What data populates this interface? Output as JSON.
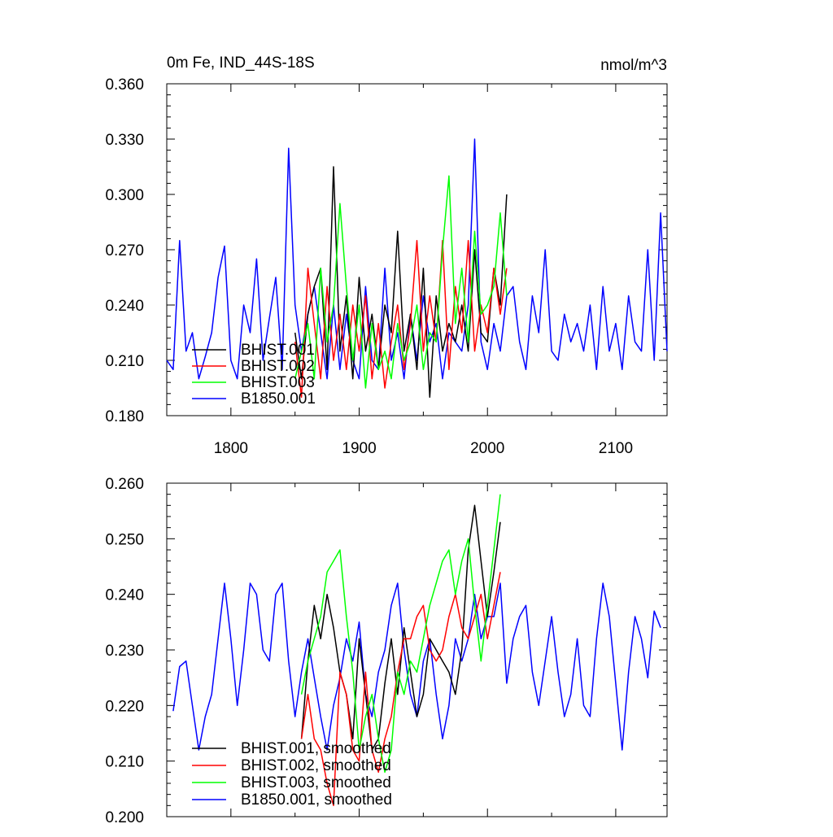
{
  "chart_data": [
    {
      "type": "line",
      "title": "0m Fe, IND_44S-18S",
      "units": "nmol/m^3",
      "xlim": [
        1750,
        2140
      ],
      "ylim": [
        0.18,
        0.36
      ],
      "xticks": [
        1800,
        1900,
        2000,
        2100
      ],
      "xtick_labels": [
        "1800",
        "1900",
        "2000",
        "2100"
      ],
      "yticks": [
        0.18,
        0.21,
        0.24,
        0.27,
        0.3,
        0.33,
        0.36
      ],
      "ytick_labels": [
        "0.180",
        "0.210",
        "0.240",
        "0.270",
        "0.300",
        "0.330",
        "0.360"
      ],
      "legend_position": "bottom-left",
      "grid": false,
      "series": [
        {
          "name": "B1850.001",
          "color": "#0000ff",
          "x": [
            1750,
            1755,
            1760,
            1765,
            1770,
            1775,
            1780,
            1785,
            1790,
            1795,
            1800,
            1805,
            1810,
            1815,
            1820,
            1825,
            1830,
            1835,
            1840,
            1845,
            1850,
            1855,
            1860,
            1865,
            1870,
            1875,
            1880,
            1885,
            1890,
            1895,
            1900,
            1905,
            1910,
            1915,
            1920,
            1925,
            1930,
            1935,
            1940,
            1945,
            1950,
            1955,
            1960,
            1965,
            1970,
            1975,
            1980,
            1985,
            1990,
            1995,
            2000,
            2005,
            2010,
            2015,
            2020,
            2025,
            2030,
            2035,
            2040,
            2045,
            2050,
            2055,
            2060,
            2065,
            2070,
            2075,
            2080,
            2085,
            2090,
            2095,
            2100,
            2105,
            2110,
            2115,
            2120,
            2125,
            2130,
            2135,
            2140
          ],
          "y": [
            0.21,
            0.205,
            0.275,
            0.215,
            0.225,
            0.2,
            0.212,
            0.225,
            0.255,
            0.272,
            0.21,
            0.2,
            0.24,
            0.225,
            0.265,
            0.21,
            0.233,
            0.255,
            0.205,
            0.325,
            0.24,
            0.215,
            0.235,
            0.25,
            0.225,
            0.2,
            0.24,
            0.205,
            0.235,
            0.21,
            0.2,
            0.25,
            0.21,
            0.205,
            0.26,
            0.21,
            0.225,
            0.2,
            0.235,
            0.21,
            0.245,
            0.22,
            0.23,
            0.2,
            0.225,
            0.22,
            0.215,
            0.24,
            0.33,
            0.22,
            0.205,
            0.23,
            0.215,
            0.245,
            0.25,
            0.22,
            0.205,
            0.245,
            0.225,
            0.27,
            0.215,
            0.21,
            0.235,
            0.22,
            0.23,
            0.215,
            0.24,
            0.205,
            0.25,
            0.215,
            0.23,
            0.205,
            0.245,
            0.22,
            0.215,
            0.27,
            0.21,
            0.29,
            0.215
          ]
        },
        {
          "name": "BHIST.001",
          "color": "#000000",
          "x": [
            1850,
            1855,
            1860,
            1865,
            1870,
            1875,
            1880,
            1885,
            1890,
            1895,
            1900,
            1905,
            1910,
            1915,
            1920,
            1925,
            1930,
            1935,
            1940,
            1945,
            1950,
            1955,
            1960,
            1965,
            1970,
            1975,
            1980,
            1985,
            1990,
            1995,
            2000,
            2005,
            2010,
            2015
          ],
          "y": [
            0.225,
            0.2,
            0.235,
            0.25,
            0.26,
            0.205,
            0.315,
            0.215,
            0.245,
            0.2,
            0.255,
            0.215,
            0.235,
            0.205,
            0.24,
            0.225,
            0.28,
            0.215,
            0.235,
            0.205,
            0.26,
            0.19,
            0.245,
            0.215,
            0.23,
            0.22,
            0.24,
            0.215,
            0.27,
            0.225,
            0.22,
            0.26,
            0.24,
            0.3
          ]
        },
        {
          "name": "BHIST.002",
          "color": "#ff0000",
          "x": [
            1850,
            1855,
            1860,
            1865,
            1870,
            1875,
            1880,
            1885,
            1890,
            1895,
            1900,
            1905,
            1910,
            1915,
            1920,
            1925,
            1930,
            1935,
            1940,
            1945,
            1950,
            1955,
            1960,
            1965,
            1970,
            1975,
            1980,
            1985,
            1990,
            1995,
            2000,
            2005,
            2010,
            2015
          ],
          "y": [
            0.22,
            0.19,
            0.26,
            0.23,
            0.2,
            0.25,
            0.21,
            0.235,
            0.205,
            0.24,
            0.215,
            0.245,
            0.2,
            0.23,
            0.195,
            0.22,
            0.24,
            0.205,
            0.23,
            0.275,
            0.215,
            0.245,
            0.22,
            0.275,
            0.205,
            0.25,
            0.225,
            0.275,
            0.215,
            0.24,
            0.225,
            0.26,
            0.235,
            0.26
          ]
        },
        {
          "name": "BHIST.003",
          "color": "#00ff00",
          "x": [
            1850,
            1855,
            1860,
            1865,
            1870,
            1875,
            1880,
            1885,
            1890,
            1895,
            1900,
            1905,
            1910,
            1915,
            1920,
            1925,
            1930,
            1935,
            1940,
            1945,
            1950,
            1955,
            1960,
            1965,
            1970,
            1975,
            1980,
            1985,
            1990,
            1995,
            2000,
            2005,
            2010,
            2015
          ],
          "y": [
            0.2,
            0.215,
            0.23,
            0.2,
            0.26,
            0.22,
            0.24,
            0.295,
            0.25,
            0.21,
            0.24,
            0.195,
            0.23,
            0.205,
            0.215,
            0.2,
            0.23,
            0.21,
            0.22,
            0.24,
            0.205,
            0.225,
            0.22,
            0.27,
            0.31,
            0.23,
            0.26,
            0.22,
            0.28,
            0.235,
            0.24,
            0.25,
            0.29,
            0.245
          ]
        }
      ],
      "legend": [
        "BHIST.001",
        "BHIST.002",
        "BHIST.003",
        "B1850.001"
      ]
    },
    {
      "type": "line",
      "title": "",
      "xlim": [
        1750,
        2140
      ],
      "ylim": [
        0.2,
        0.26
      ],
      "xticks": [
        1800,
        1900,
        2000,
        2100
      ],
      "yticks": [
        0.2,
        0.21,
        0.22,
        0.23,
        0.24,
        0.25,
        0.26
      ],
      "ytick_labels": [
        "0.200",
        "0.210",
        "0.220",
        "0.230",
        "0.240",
        "0.250",
        "0.260"
      ],
      "legend_position": "bottom-left",
      "grid": false,
      "series": [
        {
          "name": "B1850.001, smoothed",
          "color": "#0000ff",
          "x": [
            1755,
            1760,
            1765,
            1770,
            1775,
            1780,
            1785,
            1790,
            1795,
            1800,
            1805,
            1810,
            1815,
            1820,
            1825,
            1830,
            1835,
            1840,
            1845,
            1850,
            1855,
            1860,
            1865,
            1870,
            1875,
            1880,
            1885,
            1890,
            1895,
            1900,
            1905,
            1910,
            1915,
            1920,
            1925,
            1930,
            1935,
            1940,
            1945,
            1950,
            1955,
            1960,
            1965,
            1970,
            1975,
            1980,
            1985,
            1990,
            1995,
            2000,
            2005,
            2010,
            2015,
            2020,
            2025,
            2030,
            2035,
            2040,
            2045,
            2050,
            2055,
            2060,
            2065,
            2070,
            2075,
            2080,
            2085,
            2090,
            2095,
            2100,
            2105,
            2110,
            2115,
            2120,
            2125,
            2130,
            2135
          ],
          "y": [
            0.219,
            0.227,
            0.228,
            0.22,
            0.212,
            0.218,
            0.222,
            0.232,
            0.242,
            0.232,
            0.22,
            0.23,
            0.242,
            0.24,
            0.23,
            0.228,
            0.24,
            0.242,
            0.228,
            0.218,
            0.226,
            0.232,
            0.225,
            0.218,
            0.212,
            0.22,
            0.225,
            0.232,
            0.228,
            0.235,
            0.222,
            0.218,
            0.226,
            0.23,
            0.238,
            0.242,
            0.23,
            0.222,
            0.218,
            0.228,
            0.232,
            0.222,
            0.214,
            0.22,
            0.232,
            0.228,
            0.232,
            0.24,
            0.232,
            0.236,
            0.236,
            0.242,
            0.224,
            0.232,
            0.236,
            0.238,
            0.226,
            0.22,
            0.228,
            0.236,
            0.226,
            0.218,
            0.222,
            0.232,
            0.22,
            0.218,
            0.232,
            0.242,
            0.236,
            0.224,
            0.212,
            0.226,
            0.236,
            0.232,
            0.225,
            0.237,
            0.234
          ]
        },
        {
          "name": "BHIST.001, smoothed",
          "color": "#000000",
          "x": [
            1855,
            1860,
            1865,
            1870,
            1875,
            1880,
            1885,
            1890,
            1895,
            1900,
            1905,
            1910,
            1915,
            1920,
            1925,
            1930,
            1935,
            1940,
            1945,
            1950,
            1955,
            1960,
            1965,
            1970,
            1975,
            1980,
            1985,
            1990,
            1995,
            2000,
            2005,
            2010
          ],
          "y": [
            0.214,
            0.228,
            0.238,
            0.232,
            0.24,
            0.234,
            0.226,
            0.222,
            0.214,
            0.232,
            0.222,
            0.212,
            0.214,
            0.224,
            0.232,
            0.222,
            0.234,
            0.226,
            0.218,
            0.222,
            0.232,
            0.23,
            0.228,
            0.226,
            0.222,
            0.23,
            0.248,
            0.256,
            0.246,
            0.236,
            0.244,
            0.253
          ]
        },
        {
          "name": "BHIST.002, smoothed",
          "color": "#ff0000",
          "x": [
            1855,
            1860,
            1865,
            1870,
            1875,
            1880,
            1885,
            1890,
            1895,
            1900,
            1905,
            1910,
            1915,
            1920,
            1925,
            1930,
            1935,
            1940,
            1945,
            1950,
            1955,
            1960,
            1965,
            1970,
            1975,
            1980,
            1985,
            1990,
            1995,
            2000,
            2005,
            2010
          ],
          "y": [
            0.214,
            0.222,
            0.214,
            0.212,
            0.206,
            0.202,
            0.226,
            0.222,
            0.212,
            0.21,
            0.226,
            0.212,
            0.208,
            0.214,
            0.218,
            0.226,
            0.232,
            0.232,
            0.236,
            0.238,
            0.23,
            0.228,
            0.23,
            0.236,
            0.24,
            0.234,
            0.232,
            0.236,
            0.24,
            0.232,
            0.238,
            0.244
          ]
        },
        {
          "name": "BHIST.003, smoothed",
          "color": "#00ff00",
          "x": [
            1855,
            1860,
            1865,
            1870,
            1875,
            1880,
            1885,
            1890,
            1895,
            1900,
            1905,
            1910,
            1915,
            1920,
            1925,
            1930,
            1935,
            1940,
            1945,
            1950,
            1955,
            1960,
            1965,
            1970,
            1975,
            1980,
            1985,
            1990,
            1995,
            2000,
            2005,
            2010
          ],
          "y": [
            0.222,
            0.228,
            0.232,
            0.236,
            0.244,
            0.246,
            0.248,
            0.236,
            0.226,
            0.212,
            0.218,
            0.222,
            0.214,
            0.208,
            0.212,
            0.226,
            0.222,
            0.228,
            0.226,
            0.232,
            0.238,
            0.242,
            0.246,
            0.248,
            0.24,
            0.246,
            0.25,
            0.238,
            0.228,
            0.238,
            0.248,
            0.258
          ]
        }
      ],
      "legend": [
        "BHIST.001, smoothed",
        "BHIST.002, smoothed",
        "BHIST.003, smoothed",
        "B1850.001, smoothed"
      ]
    }
  ]
}
